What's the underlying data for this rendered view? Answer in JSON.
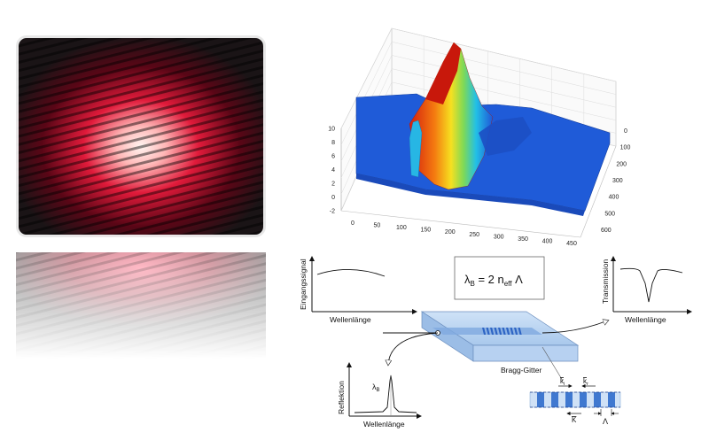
{
  "laser_photo": {
    "icon": "laser-interference-pattern"
  },
  "surface_plot": {
    "z_ticks": [
      "10",
      "8",
      "6",
      "4",
      "2",
      "0",
      "-2"
    ],
    "x_ticks": [
      "0",
      "50",
      "100",
      "150",
      "200",
      "250",
      "300",
      "350",
      "400",
      "450"
    ],
    "y_ticks": [
      "0",
      "100",
      "200",
      "300",
      "400",
      "500",
      "600"
    ],
    "colors": {
      "low": "#1f56d8",
      "mid": "#22c0e6",
      "green": "#7ed957",
      "yellow": "#f6e020",
      "high": "#d41e0e"
    }
  },
  "diagram": {
    "formula": {
      "lambda": "λ",
      "lambda_sub": "B",
      "mid": " = 2 n",
      "n_sub": "eff",
      "end": " Λ"
    },
    "input_graph": {
      "ylabel": "Eingangssignal",
      "xlabel": "Wellenlänge"
    },
    "transmission_graph": {
      "ylabel": "Transmission",
      "xlabel": "Wellenlänge"
    },
    "reflection_graph": {
      "ylabel": "Reflektion",
      "xlabel": "Wellenlänge",
      "peak_label": "λ",
      "peak_sub": "B"
    },
    "waveguide": {
      "label": "Bragg-Gitter",
      "color": "#b8d4f2"
    },
    "grating_detail": {
      "k1": "k",
      "k1_sub": "i",
      "k2": "k",
      "k2_sub": "r",
      "K": "K",
      "period": "Λ"
    }
  }
}
